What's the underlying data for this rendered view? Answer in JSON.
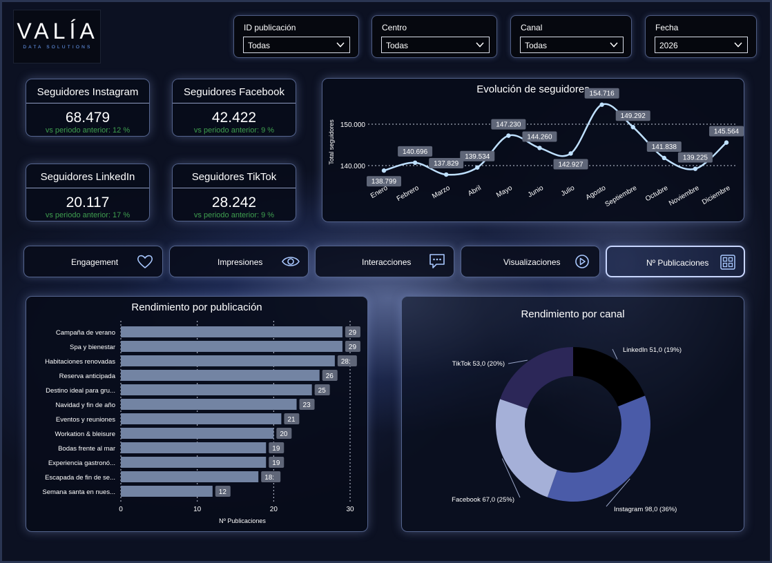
{
  "logo": {
    "name": "VALÍA",
    "tagline": "DATA SOLUTIONS"
  },
  "filters": [
    {
      "label": "ID publicación",
      "value": "Todas"
    },
    {
      "label": "Centro",
      "value": "Todas"
    },
    {
      "label": "Canal",
      "value": "Todas"
    },
    {
      "label": "Fecha",
      "value": "2026"
    }
  ],
  "kpis": [
    {
      "title": "Seguidores Instagram",
      "value": "68.479",
      "delta": "vs periodo anterior: 12 %"
    },
    {
      "title": "Seguidores Facebook",
      "value": "42.422",
      "delta": "vs periodo anterior: 9 %"
    },
    {
      "title": "Seguidores LinkedIn",
      "value": "20.117",
      "delta": "vs periodo anterior: 17 %"
    },
    {
      "title": "Seguidores TikTok",
      "value": "28.242",
      "delta": "vs periodo anterior: 9 %"
    }
  ],
  "nav": [
    {
      "label": "Engagement",
      "icon": "heart-icon",
      "active": false
    },
    {
      "label": "Impresiones",
      "icon": "eye-icon",
      "active": false
    },
    {
      "label": "Interacciones",
      "icon": "chat-bubble-icon",
      "active": false
    },
    {
      "label": "Visualizaciones",
      "icon": "play-circle-icon",
      "active": false
    },
    {
      "label": "Nº Publicaciones",
      "icon": "grid-document-icon",
      "active": true
    }
  ],
  "colors": {
    "line": "#bfe0ff",
    "bar": "#7384a3",
    "delta_green": "#3f9f4f",
    "donut_linkedin": "#000000",
    "donut_instagram": "#4a5ba8",
    "donut_facebook": "#a5b0d8",
    "donut_tiktok": "#2c2758"
  },
  "chart_data": [
    {
      "type": "line",
      "title": "Evolución de seguidores",
      "ylabel": "Total seguidores",
      "xlabel": "",
      "categories": [
        "Enero",
        "Febrero",
        "Marzo",
        "Abril",
        "Mayo",
        "Junio",
        "Julio",
        "Agosto",
        "Septiembre",
        "Octubre",
        "Noviembre",
        "Diciembre"
      ],
      "values": [
        138799,
        140696,
        137829,
        139534,
        147230,
        144260,
        142927,
        154716,
        149292,
        141838,
        139225,
        145564
      ],
      "labels": [
        "138.799",
        "140.696",
        "137.829",
        "139.534",
        "147.230",
        "144.260",
        "142.927",
        "154.716",
        "149.292",
        "141.838",
        "139.225",
        "145.564"
      ],
      "yticks": [
        140000,
        150000
      ],
      "ytick_labels": [
        "140.000",
        "150.000"
      ],
      "ylim": [
        136000,
        156000
      ],
      "grid": true
    },
    {
      "type": "bar",
      "orientation": "horizontal",
      "title": "Rendimiento por publicación",
      "xlabel": "Nº Publicaciones",
      "ylabel": "",
      "categories": [
        "Campaña de verano",
        "Spa y bienestar",
        "Habitaciones renovadas",
        "Reserva anticipada",
        "Destino ideal para gru...",
        "Navidad y fin de año",
        "Eventos y reuniones",
        "Workation & bleisure",
        "Bodas frente al mar",
        "Experiencia gastronó...",
        "Escapada de fin de se...",
        "Semana santa en nues..."
      ],
      "values": [
        29,
        29,
        28,
        26,
        25,
        23,
        21,
        20,
        19,
        19,
        18,
        12
      ],
      "value_labels": [
        "29",
        "29",
        "28:",
        "26",
        "25",
        "23",
        "21",
        "20",
        "19",
        "19",
        "18:",
        "12"
      ],
      "xticks": [
        0,
        10,
        20,
        30
      ],
      "xlim": [
        0,
        30
      ],
      "grid": true
    },
    {
      "type": "pie",
      "subtype": "donut",
      "title": "Rendimiento por canal",
      "slices": [
        {
          "name": "LinkedIn",
          "value": 51.0,
          "label": "LinkedIn 51,0 (19%)"
        },
        {
          "name": "Instagram",
          "value": 98.0,
          "label": "Instagram 98,0 (36%)"
        },
        {
          "name": "Facebook",
          "value": 67.0,
          "label": "Facebook 67,0 (25%)"
        },
        {
          "name": "TikTok",
          "value": 53.0,
          "label": "TikTok 53,0 (20%)"
        }
      ]
    }
  ]
}
